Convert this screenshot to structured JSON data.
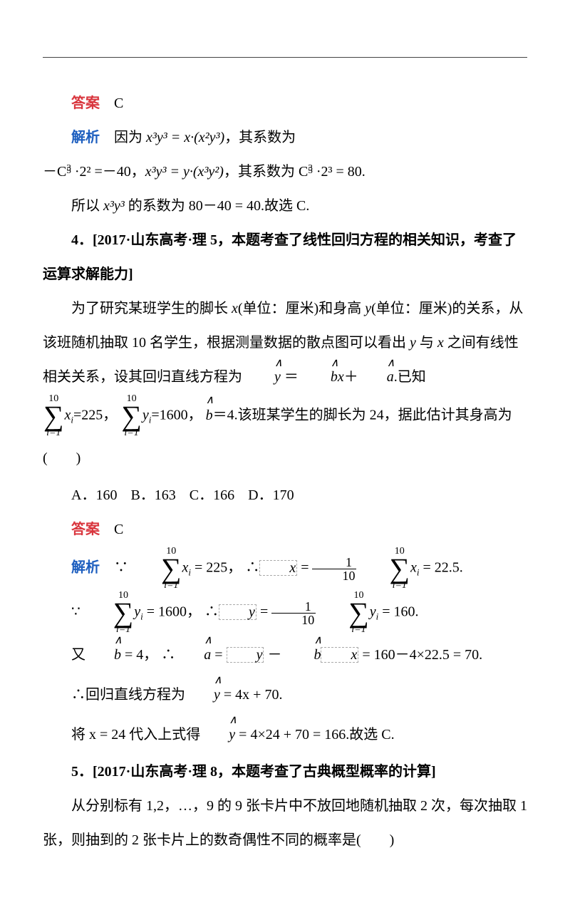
{
  "line1_label": "答案",
  "line1_text": "C",
  "line2_label": "解析",
  "line2_text": "因为 ",
  "eq2a": "x³y³ = x·(x²y³)",
  "line2_text2": "，其系数为",
  "line3a": "－C",
  "line3b": "·2² =－40，",
  "eq3a": "x³y³ = y·(x³y²)",
  "line3c": "，其系数为 C",
  "line3d": "·2³ = 80.",
  "line4a": "所以 ",
  "eq4": "x³y³",
  "line4b": " 的系数为 80－40 = 40.故选 C.",
  "q4_title": "4．[2017·山东高考·理 5，本题考查了线性回归方程的相关知识，考查了运算求解能力]",
  "q4_p1a": "为了研究某班学生的脚长 ",
  "q4_x": "x",
  "q4_p1b": "(单位：厘米)和身高 ",
  "q4_y": "y",
  "q4_p1c": "(单位：厘米)的关系，从该班随机抽取 10 名学生，根据测量数据的散点图可以看出 ",
  "q4_p2a": " 与 ",
  "q4_p2b": " 之间有线性相关关系，设其回归直线方程为",
  "q4_p2c": ".已知",
  "q4_p3a": "=225，",
  "q4_p3b": "=1600，",
  "q4_p3c": "＝4.该班某学生的脚长为 24，据此估计其身高为(　　)",
  "optA": "A．160",
  "optB": "B．163",
  "optC": "C．166",
  "optD": "D．170",
  "ans4_label": "答案",
  "ans4_text": "C",
  "exp4_label": "解析",
  "exp4_a1": "∵",
  "exp4_val1": " = 225，",
  "exp4_a2": "∴",
  "exp4_val2": " = 22.5.",
  "exp4_b1": "∵",
  "exp4_valb1": " = 1600，",
  "exp4_b2": "∴",
  "exp4_valb2": " = 160.",
  "exp4_c1": "又",
  "exp4_c2": " = 4，",
  "exp4_c3": "∴",
  "exp4_c4": " = ",
  "exp4_c5": " － ",
  "exp4_c6": " = 160－4×22.5 = 70.",
  "exp4_d1": "∴回归直线方程为",
  "exp4_d2": " = 4x + 70.",
  "exp4_e1": "将 x = 24 代入上式得",
  "exp4_e2": " = 4×24 + 70 = 166.故选 C.",
  "q5_title": "5．[2017·山东高考·理 8，本题考查了古典概型概率的计算]",
  "q5_body": "从分别标有 1,2，…，9 的 9 张卡片中不放回地随机抽取 2 次，每次抽取 1 张，则抽到的 2 张卡片上的数奇偶性不同的概率是(　　)",
  "sum_top": "10",
  "sum_x": "x",
  "sum_y": "y",
  "sum_bot": "i=1",
  "sub_i": "i",
  "frac1": "1",
  "frac10": "10",
  "hat_y": "y",
  "hat_b": "b",
  "hat_a": "a",
  "eq_eq": " ＝ ",
  "eq_plus": "＋",
  "combo_super": "5",
  "combo_sub": "3",
  "xbar": "x",
  "ybar": "y"
}
